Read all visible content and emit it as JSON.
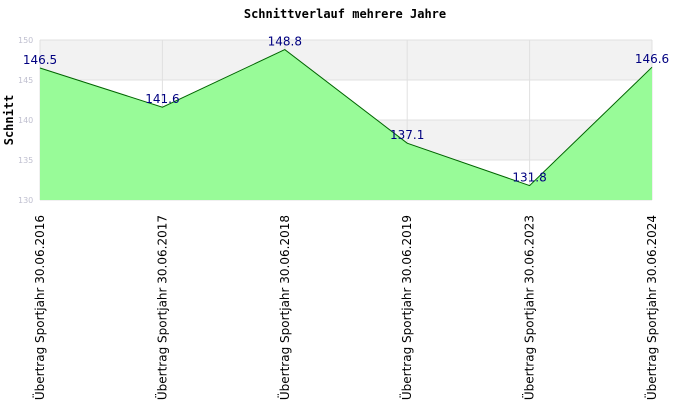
{
  "chart_data": {
    "type": "area",
    "title": "Schnittverlauf mehrere Jahre",
    "xlabel": "",
    "ylabel": "Schnitt",
    "categories": [
      "Übertrag Sportjahr 30.06.2016",
      "Übertrag Sportjahr 30.06.2017",
      "Übertrag Sportjahr 30.06.2018",
      "Übertrag Sportjahr 30.06.2019",
      "Übertrag Sportjahr 30.06.2023",
      "Übertrag Sportjahr 30.06.2024"
    ],
    "series": [
      {
        "values": [
          146.5,
          141.6,
          148.8,
          137.1,
          131.8,
          146.6
        ],
        "data_labels": [
          "146.5",
          "141.6",
          "148.8",
          "137.1",
          "131.8",
          "146.6"
        ]
      }
    ],
    "ylim": [
      130,
      150
    ],
    "yticks": [
      130,
      135,
      140,
      145,
      150
    ],
    "ytick_labels": [
      "130",
      "135",
      "140",
      "145",
      "150"
    ],
    "grid": true,
    "legend": "none",
    "colors": {
      "fill": "#98fb98",
      "line": "#006400",
      "band_light": "#f2f2f2",
      "band_white": "#ffffff",
      "grid": "#e0e0e0",
      "data_label": "#000080",
      "tick": "#bfbfcf"
    }
  }
}
